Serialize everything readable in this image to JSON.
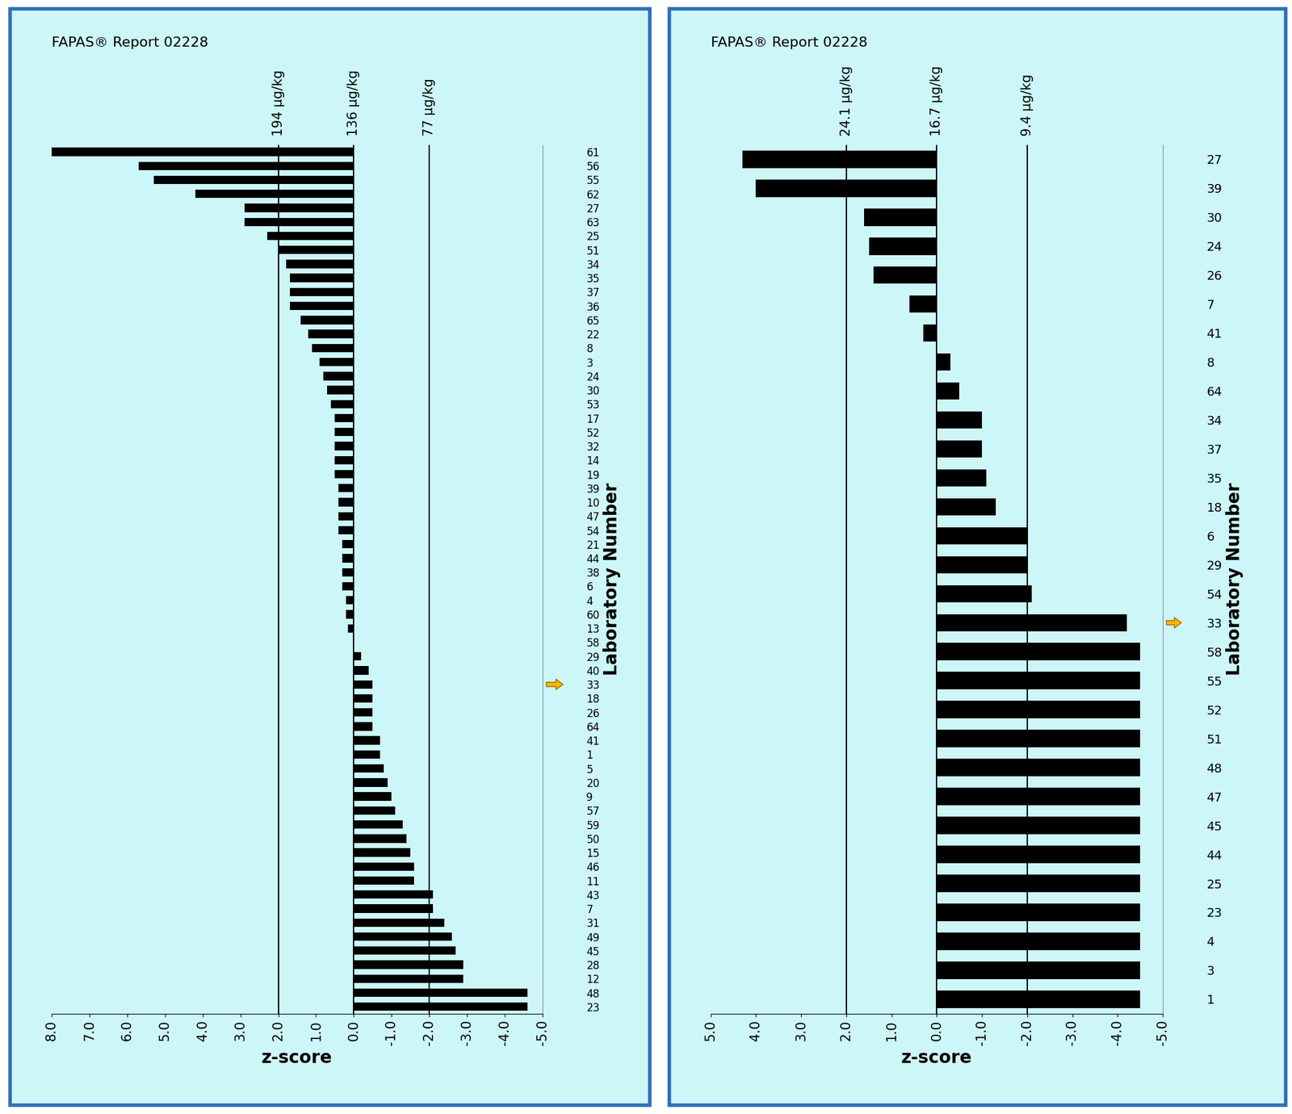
{
  "chart_data": [
    {
      "type": "bar",
      "orientation": "horizontal",
      "title": "FAPAS® Report 02228",
      "xlabel": "z-score",
      "ylabel": "Laboratory Number",
      "color": "#000000",
      "categories": [
        "61",
        "56",
        "55",
        "62",
        "27",
        "63",
        "25",
        "51",
        "34",
        "35",
        "37",
        "36",
        "65",
        "22",
        "8",
        "3",
        "24",
        "30",
        "53",
        "17",
        "52",
        "32",
        "14",
        "19",
        "39",
        "10",
        "47",
        "54",
        "21",
        "44",
        "38",
        "6",
        "4",
        "60",
        "13",
        "58",
        "29",
        "40",
        "33",
        "18",
        "26",
        "64",
        "41",
        "1",
        "5",
        "20",
        "9",
        "57",
        "59",
        "50",
        "15",
        "46",
        "11",
        "43",
        "7",
        "31",
        "49",
        "45",
        "28",
        "12",
        "48",
        "23"
      ],
      "values": [
        8.0,
        5.7,
        5.3,
        4.2,
        2.9,
        2.9,
        2.3,
        2.0,
        1.8,
        1.7,
        1.7,
        1.7,
        1.4,
        1.2,
        1.1,
        0.9,
        0.8,
        0.7,
        0.6,
        0.5,
        0.5,
        0.5,
        0.5,
        0.5,
        0.4,
        0.4,
        0.4,
        0.4,
        0.3,
        0.3,
        0.3,
        0.3,
        0.2,
        0.2,
        0.15,
        0.02,
        -0.2,
        -0.4,
        -0.5,
        -0.5,
        -0.5,
        -0.5,
        -0.7,
        -0.7,
        -0.8,
        -0.9,
        -1.0,
        -1.1,
        -1.3,
        -1.4,
        -1.5,
        -1.6,
        -1.6,
        -2.1,
        -2.1,
        -2.4,
        -2.6,
        -2.7,
        -2.9,
        -2.9,
        -4.6,
        -4.6
      ],
      "xlim": [
        8,
        -5
      ],
      "xticks": [
        {
          "value": 8,
          "label": "8.0"
        },
        {
          "value": 7,
          "label": "7.0"
        },
        {
          "value": 6,
          "label": "6.0"
        },
        {
          "value": 5,
          "label": "5.0"
        },
        {
          "value": 4,
          "label": "4.0"
        },
        {
          "value": 3,
          "label": "3.0"
        },
        {
          "value": 2,
          "label": "2.0"
        },
        {
          "value": 1,
          "label": "1.0"
        },
        {
          "value": 0,
          "label": "0.0"
        },
        {
          "value": -1,
          "label": "-1.0"
        },
        {
          "value": -2,
          "label": "-2.0"
        },
        {
          "value": -3,
          "label": "-3.0"
        },
        {
          "value": -4,
          "label": "-4.0"
        },
        {
          "value": -5,
          "label": "-5.0"
        }
      ],
      "reference_lines": [
        {
          "value": 2,
          "label": "194 µg/kg"
        },
        {
          "value": 0,
          "label": "136 µg/kg"
        },
        {
          "value": -2,
          "label": "77 µg/kg"
        }
      ],
      "highlight": "33"
    },
    {
      "type": "bar",
      "orientation": "horizontal",
      "title": "FAPAS® Report 02228",
      "xlabel": "z-score",
      "ylabel": "Laboratory Number",
      "color": "#000000",
      "categories": [
        "27",
        "39",
        "30",
        "24",
        "26",
        "7",
        "41",
        "8",
        "64",
        "34",
        "37",
        "35",
        "18",
        "6",
        "29",
        "54",
        "33",
        "58",
        "55",
        "52",
        "51",
        "48",
        "47",
        "45",
        "44",
        "25",
        "23",
        "4",
        "3",
        "1"
      ],
      "values": [
        4.3,
        4.0,
        1.6,
        1.5,
        1.4,
        0.6,
        0.3,
        -0.3,
        -0.5,
        -1.0,
        -1.0,
        -1.1,
        -1.3,
        -2.0,
        -2.0,
        -2.1,
        -4.2,
        -4.5,
        -4.5,
        -4.5,
        -4.5,
        -4.5,
        -4.5,
        -4.5,
        -4.5,
        -4.5,
        -4.5,
        -4.5,
        -4.5,
        -4.5
      ],
      "xlim": [
        5,
        -5
      ],
      "xticks": [
        {
          "value": 5,
          "label": "5.0"
        },
        {
          "value": 4,
          "label": "4.0"
        },
        {
          "value": 3,
          "label": "3.0"
        },
        {
          "value": 2,
          "label": "2.0"
        },
        {
          "value": 1,
          "label": "1.0"
        },
        {
          "value": 0,
          "label": "0.0"
        },
        {
          "value": -1,
          "label": "-1.0"
        },
        {
          "value": -2,
          "label": "-2.0"
        },
        {
          "value": -3,
          "label": "-3.0"
        },
        {
          "value": -4,
          "label": "-4.0"
        },
        {
          "value": -5,
          "label": "-5.0"
        }
      ],
      "reference_lines": [
        {
          "value": 2,
          "label": "24.1 µg/kg"
        },
        {
          "value": 0,
          "label": "16.7 µg/kg"
        },
        {
          "value": -2,
          "label": "9.4 µg/kg"
        }
      ],
      "highlight": "33"
    }
  ]
}
